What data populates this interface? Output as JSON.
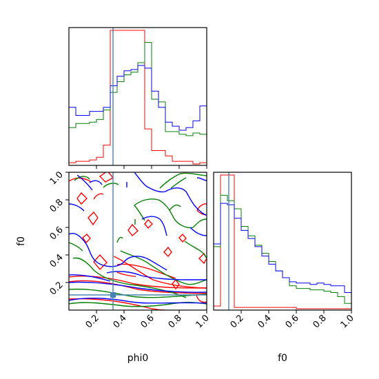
{
  "chart_data": {
    "type": "corner",
    "parameters": [
      "phi0",
      "f0"
    ],
    "colors": {
      "red": "#ff0000",
      "green": "#008000",
      "blue": "#0000ff",
      "truth": "#4682b4"
    },
    "truth": {
      "phi0": 0.32,
      "f0": 0.11
    },
    "panels": [
      {
        "name": "phi0-histogram",
        "type": "step-histogram",
        "xlim": [
          0,
          1
        ],
        "bins": 20,
        "series": [
          {
            "name": "",
            "color": "red",
            "values": [
              2,
              3,
              3,
              4,
              6,
              15,
              100,
              100,
              100,
              100,
              100,
              27,
              11,
              11,
              7,
              3,
              3,
              3,
              1,
              2
            ]
          },
          {
            "name": "",
            "color": "green",
            "values": [
              28,
              31,
              31,
              32,
              34,
              41,
              54,
              62,
              67,
              69,
              76,
              91,
              49,
              47,
              25,
              25,
              23,
              22,
              24,
              23
            ]
          },
          {
            "name": "",
            "color": "blue",
            "values": [
              43,
              37,
              37,
              40,
              40,
              43,
              59,
              66,
              70,
              71,
              74,
              72,
              55,
              43,
              32,
              29,
              26,
              28,
              33,
              44
            ]
          }
        ]
      },
      {
        "name": "f0-histogram",
        "type": "step-histogram",
        "xlim": [
          0,
          1
        ],
        "bins": 20,
        "series": [
          {
            "name": "",
            "color": "red",
            "values": [
              3,
              100,
              100,
              2,
              2,
              2,
              2,
              2,
              2,
              2,
              2,
              2,
              1,
              1,
              1,
              1,
              1,
              1,
              1,
              1
            ]
          },
          {
            "name": "",
            "color": "green",
            "values": [
              47,
              85,
              81,
              75,
              62,
              55,
              48,
              42,
              36,
              29,
              24,
              18,
              16,
              16,
              15,
              15,
              14,
              13,
              10,
              5
            ]
          },
          {
            "name": "",
            "color": "blue",
            "values": [
              49,
              79,
              78,
              68,
              59,
              53,
              47,
              40,
              34,
              29,
              24,
              21,
              20,
              20,
              19,
              20,
              19,
              18,
              18,
              13
            ]
          }
        ]
      },
      {
        "name": "phi0-f0-contour",
        "type": "contour",
        "xlim": [
          0,
          1
        ],
        "ylim": [
          0,
          1
        ]
      }
    ],
    "axes": {
      "phi0": {
        "label": "phi0",
        "ticks": [
          0.2,
          0.4,
          0.6,
          0.8,
          1.0
        ],
        "tick_labels": [
          "0.2",
          "0.4",
          "0.6",
          "0.8",
          "1.0"
        ]
      },
      "f0": {
        "label": "f0",
        "ticks": [
          0.2,
          0.4,
          0.6,
          0.8,
          1.0
        ],
        "tick_labels": [
          "0.2",
          "0.4",
          "0.6",
          "0.8",
          "1.0"
        ]
      }
    }
  }
}
